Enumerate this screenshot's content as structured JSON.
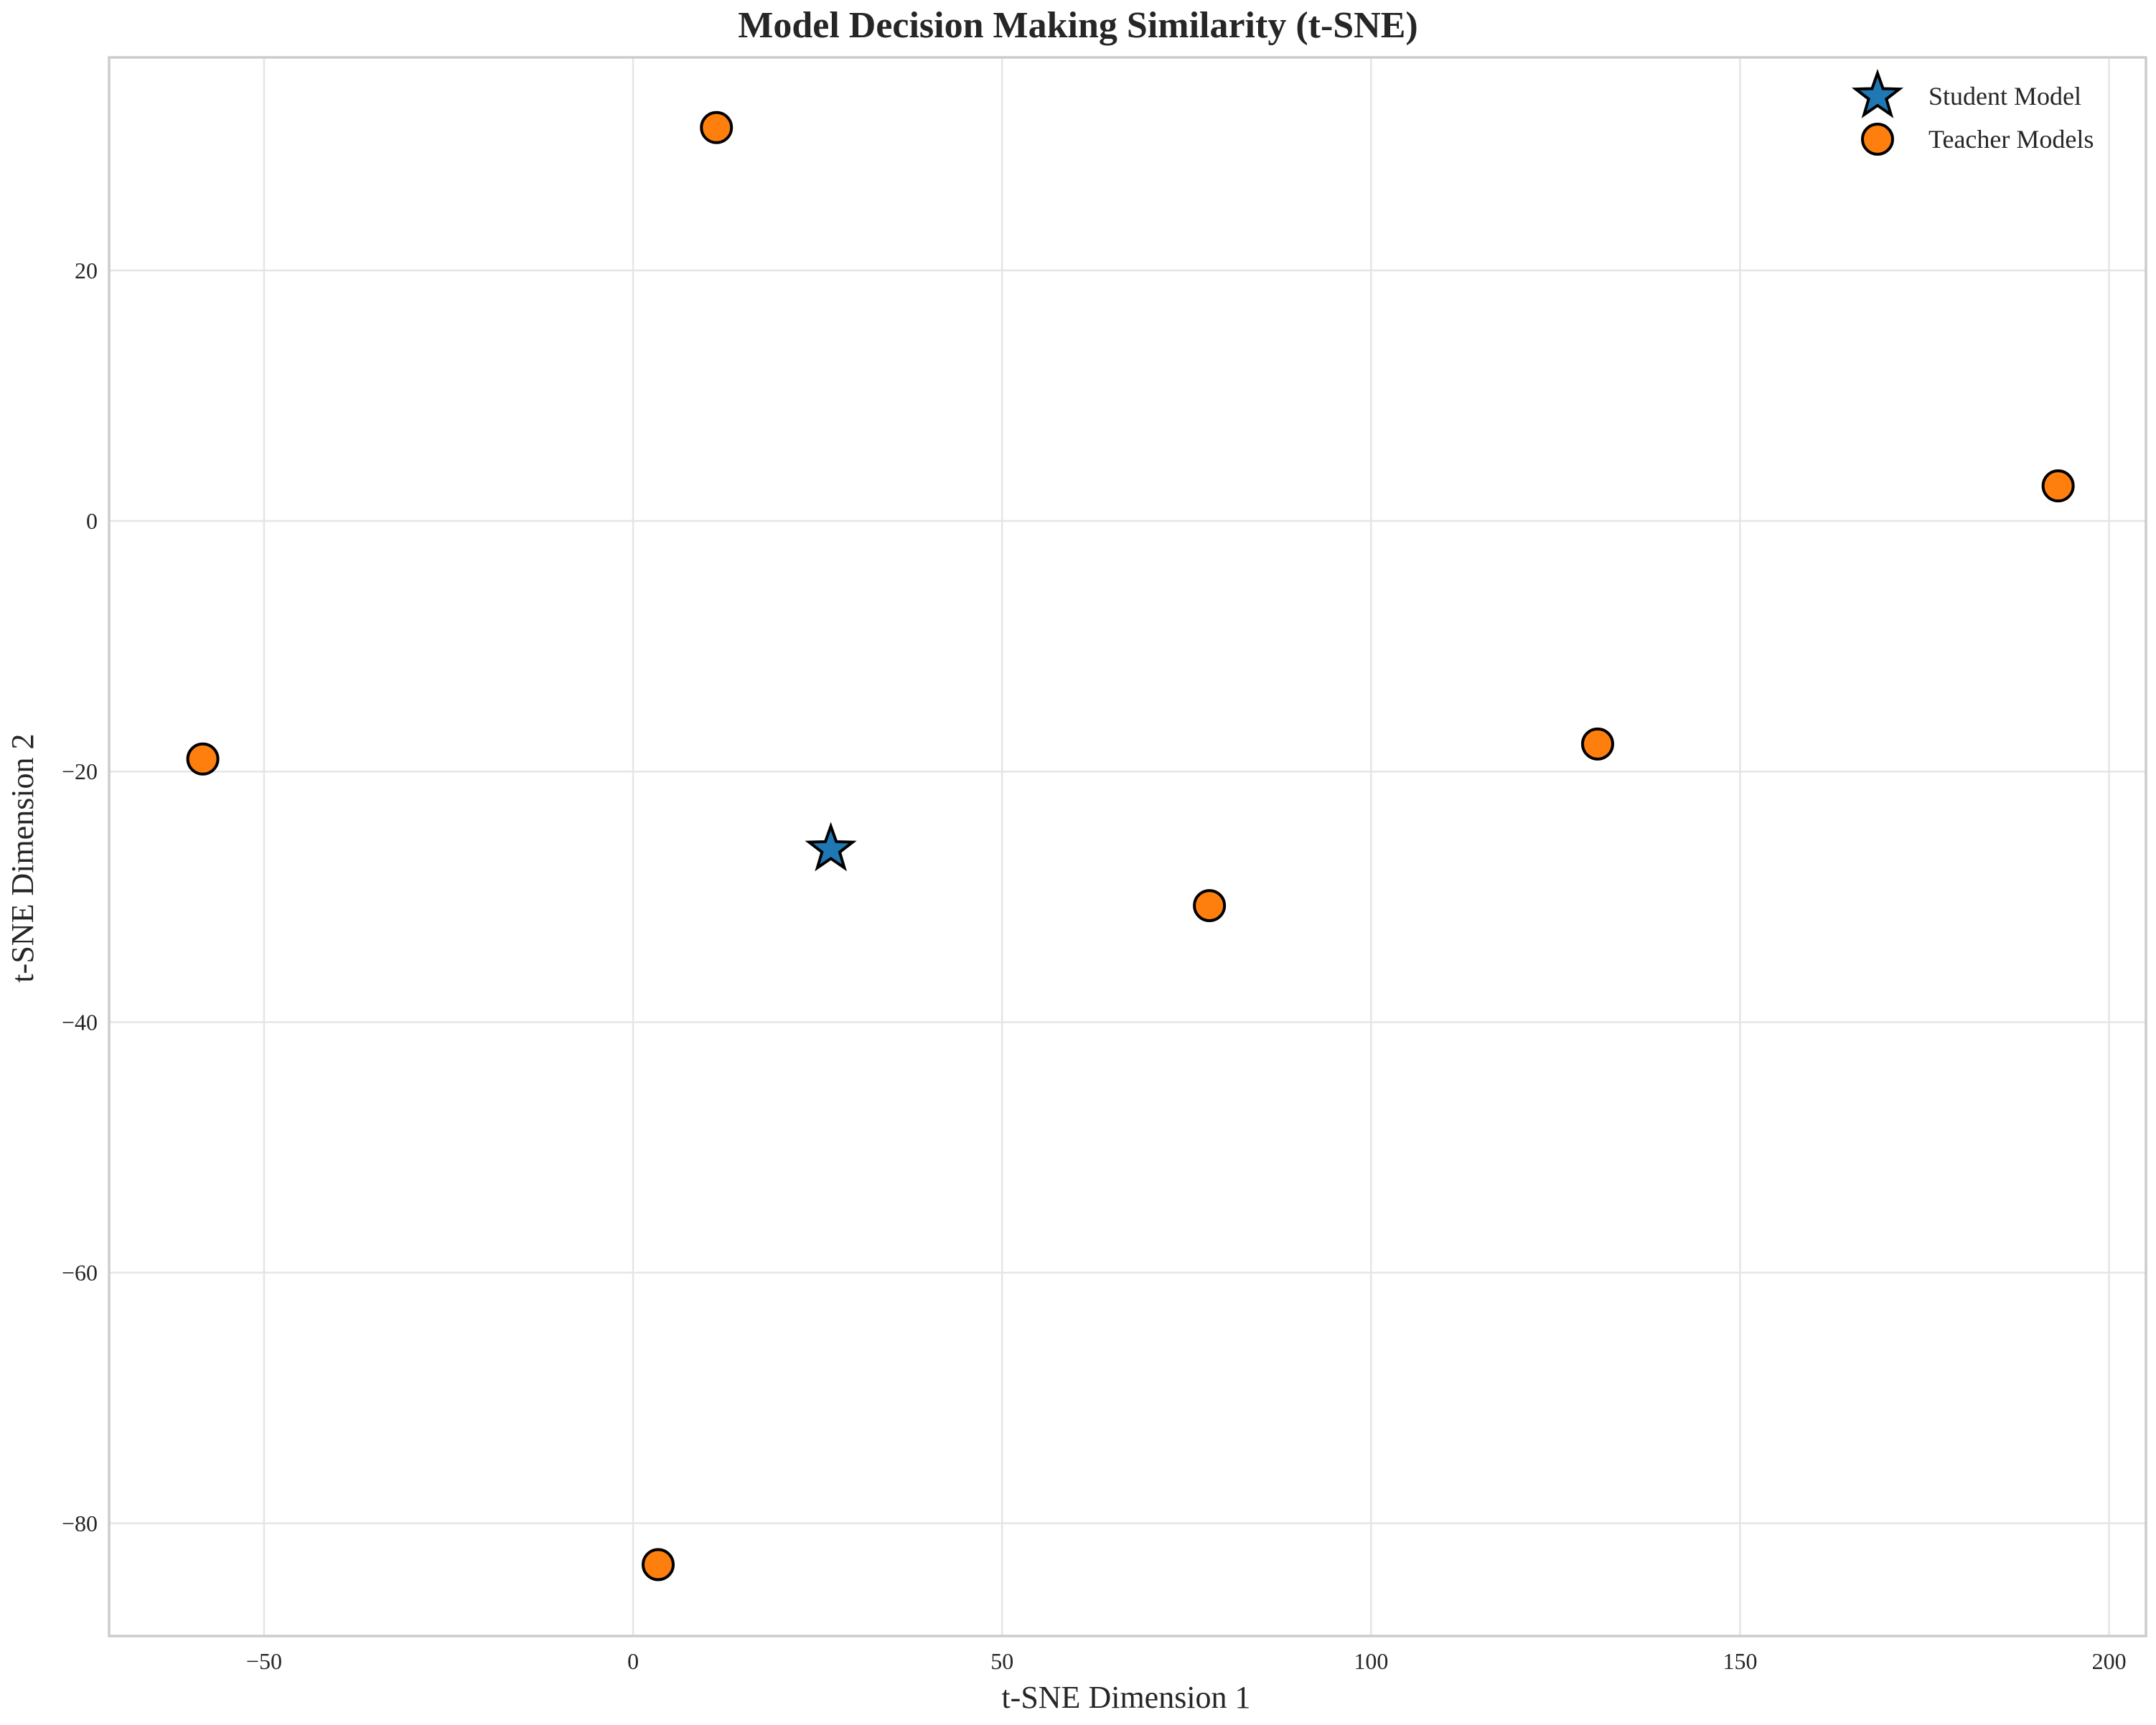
{
  "chart_data": {
    "type": "scatter",
    "title": "Model Decision Making Similarity (t-SNE)",
    "xlabel": "t-SNE Dimension 1",
    "ylabel": "t-SNE Dimension 2",
    "xlim": [
      -71,
      205
    ],
    "ylim": [
      -89,
      37
    ],
    "x_ticks": [
      -50,
      0,
      50,
      100,
      150,
      200
    ],
    "x_tick_labels": [
      "−50",
      "0",
      "50",
      "100",
      "150",
      "200"
    ],
    "y_ticks": [
      20,
      0,
      -20,
      -40,
      -60,
      -80
    ],
    "y_tick_labels": [
      "20",
      "0",
      "−20",
      "−40",
      "−60",
      "−80"
    ],
    "grid": true,
    "legend_position": "top-right",
    "series": [
      {
        "name": "Student Model",
        "marker": "star",
        "color": "#1f77b4",
        "points": [
          {
            "x": 26.8,
            "y": -26.2
          }
        ]
      },
      {
        "name": "Teacher Models",
        "marker": "circle",
        "color": "#ff7f0e",
        "points": [
          {
            "x": -58.3,
            "y": -19.0
          },
          {
            "x": 11.3,
            "y": 31.4
          },
          {
            "x": 3.4,
            "y": -83.3
          },
          {
            "x": 78.1,
            "y": -30.7
          },
          {
            "x": 130.7,
            "y": -17.8
          },
          {
            "x": 193.1,
            "y": 2.8
          }
        ]
      }
    ]
  }
}
